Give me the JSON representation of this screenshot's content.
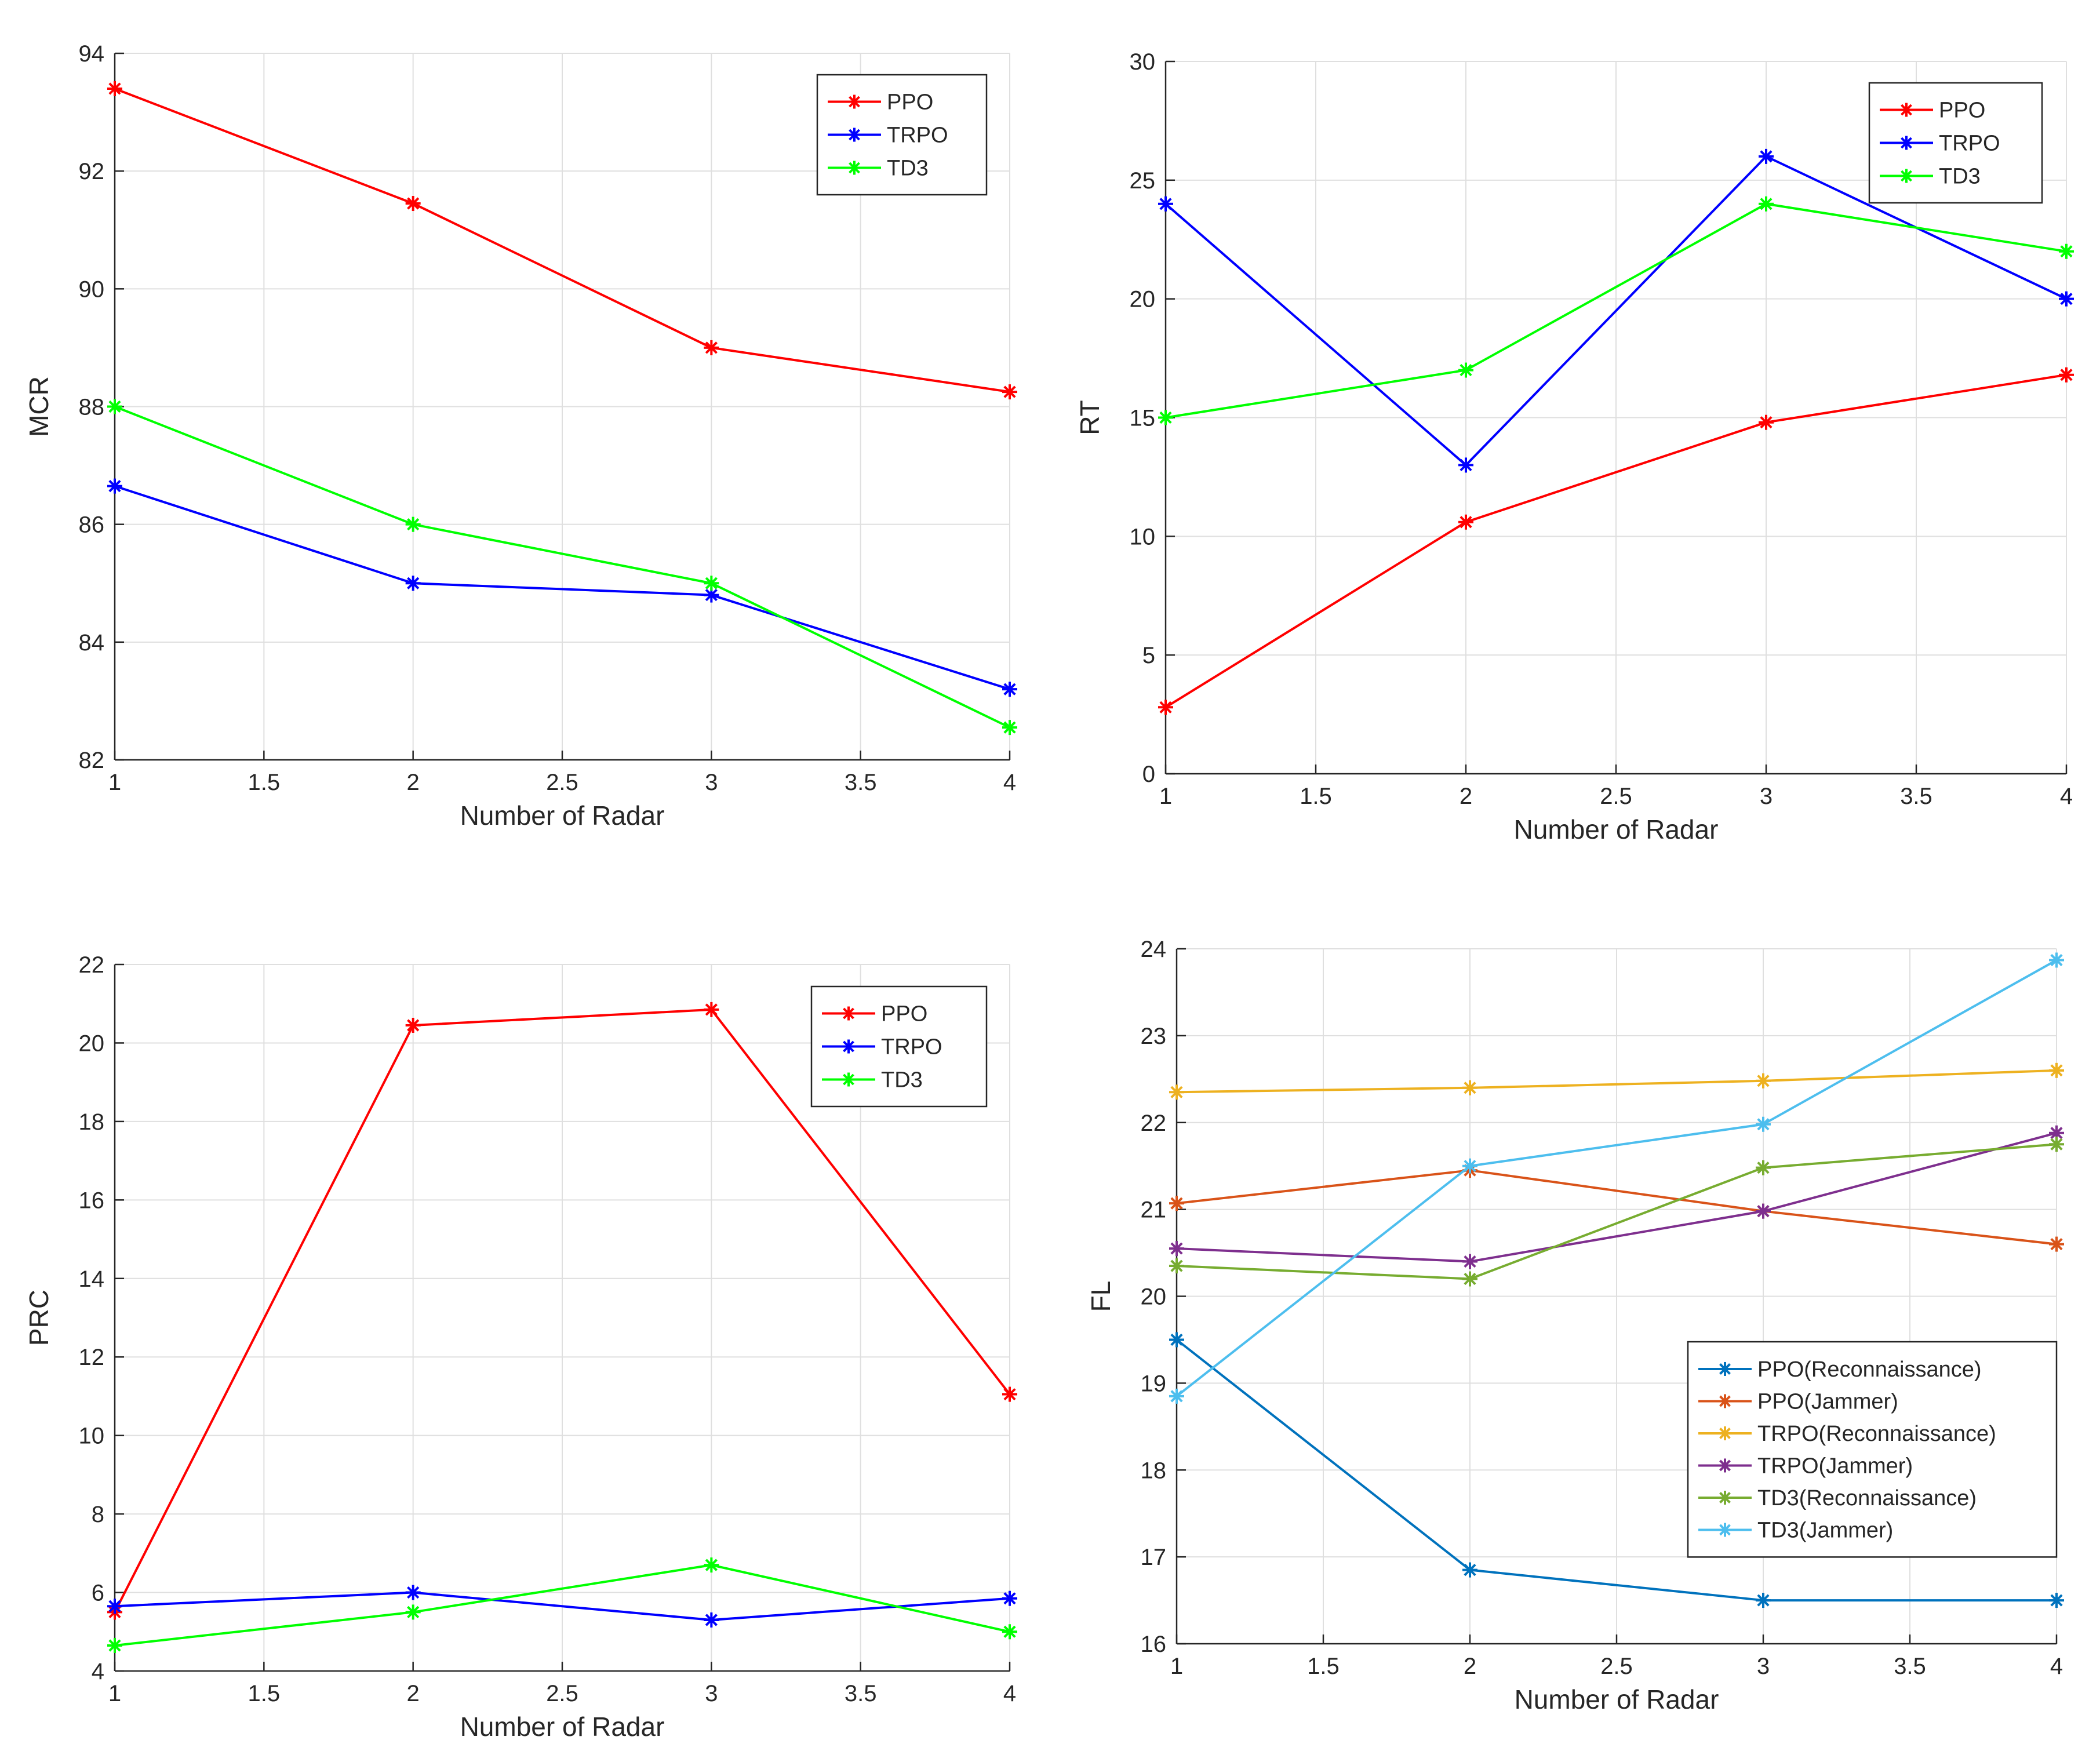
{
  "chart_data": [
    {
      "type": "line",
      "xlabel": "Number of Radar",
      "ylabel": "MCR",
      "xlim": [
        1,
        4
      ],
      "ylim": [
        82,
        94
      ],
      "xticks": [
        1,
        1.5,
        2,
        2.5,
        3,
        3.5,
        4
      ],
      "yticks": [
        82,
        84,
        86,
        88,
        90,
        92,
        94
      ],
      "grid": true,
      "legend_position": "top-right",
      "marker": "asterisk",
      "x": [
        1,
        2,
        3,
        4
      ],
      "series": [
        {
          "name": "PPO",
          "color": "#ff0000",
          "values": [
            93.4,
            91.45,
            89.0,
            88.25
          ]
        },
        {
          "name": "TRPO",
          "color": "#0000ff",
          "values": [
            86.65,
            85.0,
            84.8,
            83.2
          ]
        },
        {
          "name": "TD3",
          "color": "#00ff00",
          "values": [
            88.0,
            86.0,
            85.0,
            82.55
          ]
        }
      ]
    },
    {
      "type": "line",
      "xlabel": "Number of Radar",
      "ylabel": "RT",
      "xlim": [
        1,
        4
      ],
      "ylim": [
        0,
        30
      ],
      "xticks": [
        1,
        1.5,
        2,
        2.5,
        3,
        3.5,
        4
      ],
      "yticks": [
        0,
        5,
        10,
        15,
        20,
        25,
        30
      ],
      "grid": true,
      "legend_position": "top-right",
      "marker": "asterisk",
      "x": [
        1,
        2,
        3,
        4
      ],
      "series": [
        {
          "name": "PPO",
          "color": "#ff0000",
          "values": [
            2.8,
            10.6,
            14.8,
            16.8
          ]
        },
        {
          "name": "TRPO",
          "color": "#0000ff",
          "values": [
            24.0,
            13.0,
            26.0,
            20.0
          ]
        },
        {
          "name": "TD3",
          "color": "#00ff00",
          "values": [
            15.0,
            17.0,
            24.0,
            22.0
          ]
        }
      ]
    },
    {
      "type": "line",
      "xlabel": "Number of Radar",
      "ylabel": "PRC",
      "xlim": [
        1,
        4
      ],
      "ylim": [
        4,
        22
      ],
      "xticks": [
        1,
        1.5,
        2,
        2.5,
        3,
        3.5,
        4
      ],
      "yticks": [
        4,
        6,
        8,
        10,
        12,
        14,
        16,
        18,
        20,
        22
      ],
      "grid": true,
      "legend_position": "top-right",
      "marker": "asterisk",
      "x": [
        1,
        2,
        3,
        4
      ],
      "series": [
        {
          "name": "PPO",
          "color": "#ff0000",
          "values": [
            5.5,
            20.45,
            20.85,
            11.05
          ]
        },
        {
          "name": "TRPO",
          "color": "#0000ff",
          "values": [
            5.65,
            6.0,
            5.3,
            5.85
          ]
        },
        {
          "name": "TD3",
          "color": "#00ff00",
          "values": [
            4.65,
            5.5,
            6.7,
            5.0
          ]
        }
      ]
    },
    {
      "type": "line",
      "xlabel": "Number of Radar",
      "ylabel": "FL",
      "xlim": [
        1,
        4
      ],
      "ylim": [
        16,
        24
      ],
      "xticks": [
        1,
        1.5,
        2,
        2.5,
        3,
        3.5,
        4
      ],
      "yticks": [
        16,
        17,
        18,
        19,
        20,
        21,
        22,
        23,
        24
      ],
      "grid": true,
      "legend_position": "bottom-right",
      "marker": "asterisk",
      "x": [
        1,
        2,
        3,
        4
      ],
      "series": [
        {
          "name": "PPO(Reconnaissance)",
          "color": "#0072bd",
          "values": [
            19.5,
            16.85,
            16.5,
            16.5
          ]
        },
        {
          "name": "PPO(Jammer)",
          "color": "#d95319",
          "values": [
            21.07,
            21.45,
            20.98,
            20.6
          ]
        },
        {
          "name": "TRPO(Reconnaissance)",
          "color": "#edb120",
          "values": [
            22.35,
            22.4,
            22.48,
            22.6
          ]
        },
        {
          "name": "TRPO(Jammer)",
          "color": "#7e2f8e",
          "values": [
            20.55,
            20.4,
            20.98,
            21.88
          ]
        },
        {
          "name": "TD3(Reconnaissance)",
          "color": "#77ac30",
          "values": [
            20.35,
            20.2,
            21.48,
            21.75
          ]
        },
        {
          "name": "TD3(Jammer)",
          "color": "#4dbeee",
          "values": [
            18.85,
            21.5,
            21.98,
            23.87
          ]
        }
      ]
    }
  ]
}
